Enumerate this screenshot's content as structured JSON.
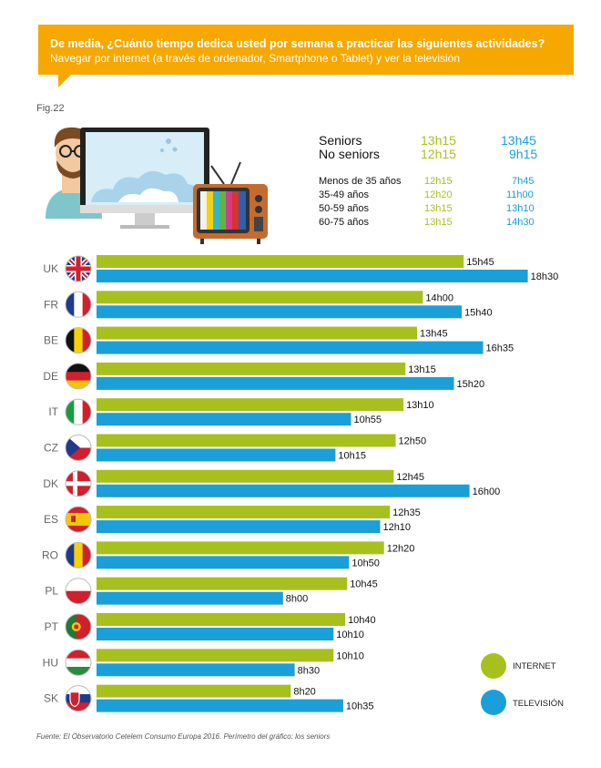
{
  "header": {
    "question": "De media, ¿Cuánto tiempo dedica usted por semana a practicar las siguientes actividades?",
    "subtitle": "Navegar por internet  (a través de ordenador, Smartphone o Tablet) y ver la televisión"
  },
  "fig_label": "Fig.22",
  "summary": {
    "main": [
      {
        "label": "Seniors",
        "internet": "13h15",
        "tv": "13h45"
      },
      {
        "label": "No seniors",
        "internet": "12h15",
        "tv": "9h15"
      }
    ],
    "ages": [
      {
        "label": "Menos de 35 años",
        "internet": "12h15",
        "tv": "7h45"
      },
      {
        "label": "35-49 años",
        "internet": "12h20",
        "tv": "11h00"
      },
      {
        "label": "50-59 años",
        "internet": "13h15",
        "tv": "13h10"
      },
      {
        "label": "60-75 años",
        "internet": "13h15",
        "tv": "14h30"
      }
    ]
  },
  "chart_data": {
    "type": "bar",
    "orientation": "horizontal",
    "categories": [
      "UK",
      "FR",
      "BE",
      "DE",
      "IT",
      "CZ",
      "DK",
      "ES",
      "RO",
      "PL",
      "PT",
      "HU",
      "SK"
    ],
    "series": [
      {
        "name": "INTERNET",
        "color": "#a8c01e",
        "values": [
          15.75,
          14.0,
          13.75,
          13.25,
          13.1667,
          12.8333,
          12.75,
          12.5833,
          12.3333,
          10.75,
          10.6667,
          10.1667,
          8.3333
        ],
        "labels": [
          "15h45",
          "14h00",
          "13h45",
          "13h15",
          "13h10",
          "12h50",
          "12h45",
          "12h35",
          "12h20",
          "10h45",
          "10h40",
          "10h10",
          "8h20"
        ]
      },
      {
        "name": "TELEVISIÓN",
        "color": "#1a9fd9",
        "values": [
          18.5,
          15.6667,
          16.5833,
          15.3333,
          10.9167,
          10.25,
          16.0,
          12.1667,
          10.8333,
          8.0,
          10.1667,
          8.5,
          10.5833
        ],
        "labels": [
          "18h30",
          "15h40",
          "16h35",
          "15h20",
          "10h55",
          "10h15",
          "16h00",
          "12h10",
          "10h50",
          "8h00",
          "10h10",
          "8h30",
          "10h35"
        ]
      }
    ],
    "xlim": [
      0,
      20
    ],
    "legend": "bottom-right"
  },
  "icons": {
    "flags": [
      "uk-flag-icon",
      "fr-flag-icon",
      "be-flag-icon",
      "de-flag-icon",
      "it-flag-icon",
      "cz-flag-icon",
      "dk-flag-icon",
      "es-flag-icon",
      "ro-flag-icon",
      "pl-flag-icon",
      "pt-flag-icon",
      "hu-flag-icon",
      "sk-flag-icon"
    ]
  },
  "source": "Fuente: El Observatorio Cetelem Consumo Europa 2016. Perímetro del gráfico: los seniors"
}
